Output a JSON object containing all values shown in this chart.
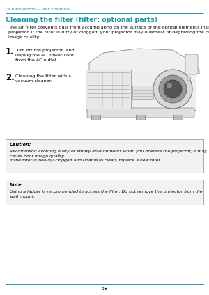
{
  "header_text": "DLP Projector—User's Manual",
  "header_color": "#2196A6",
  "header_line_color": "#2196A6",
  "title": "Cleaning the filter (filter: optional parts)",
  "title_color": "#2196A6",
  "intro_text": "The air filter prevents dust from accumulating on the surface of the optical elements inside the\nprojector. If the filter is dirty or clogged, your projector may overheat or degrading the projected\nimage quality.",
  "step1_num": "1.",
  "step1_text": "Turn off the projector, and\nunplug the AC power cord\nfrom the AC outlet.",
  "step2_num": "2.",
  "step2_text": "Cleaning the filter with a\nvacuum cleaner.",
  "caution_label": "Caution:",
  "caution_text": "Recommend avoiding dusty or smoky environments when you operate the projector, it may\ncause poor image quality.\nIf the filter is heavily clogged and unable to clean, replace a new filter.",
  "note_label": "Note:",
  "note_text": "Using a ladder is recommended to access the filter. Do not remove the projector from the\nwall mount.",
  "footer_text": "— 58 —",
  "bg_color": "#ffffff",
  "text_color": "#000000",
  "box_bg": "#f2f2f2",
  "box_border": "#aaaaaa"
}
